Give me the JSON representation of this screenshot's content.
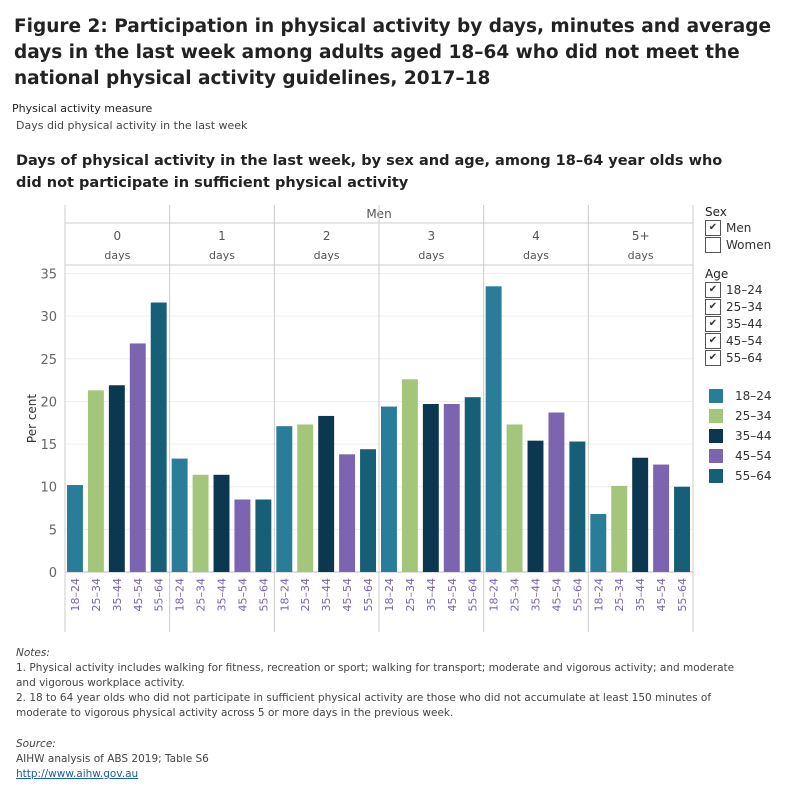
{
  "title": "Figure 2: Participation in physical activity by days, minutes and average days in the last week among adults aged 18–64 who did not meet the national physical activity guidelines, 2017–18",
  "filter": {
    "label": "Physical activity measure",
    "value": "Days did physical activity in the last week"
  },
  "chart_data": {
    "type": "bar",
    "title": "Days of physical activity in the last week, by sex and age, among 18–64 year olds who did not participate in sufficient physical activity",
    "panel_header": "Men",
    "panels": [
      {
        "value": "0",
        "unit": "days"
      },
      {
        "value": "1",
        "unit": "days"
      },
      {
        "value": "2",
        "unit": "days"
      },
      {
        "value": "3",
        "unit": "days"
      },
      {
        "value": "4",
        "unit": "days"
      },
      {
        "value": "5+",
        "unit": "days"
      }
    ],
    "categories": [
      "18–24",
      "25–34",
      "35–44",
      "45–54",
      "55–64"
    ],
    "ylabel": "Per cent",
    "ylim": [
      0,
      36
    ],
    "yticks": [
      0,
      5,
      10,
      15,
      20,
      25,
      30,
      35
    ],
    "grid": true,
    "colors": [
      "#2a7d98",
      "#a3c67b",
      "#0b3850",
      "#7b64b0",
      "#175f77"
    ],
    "values": [
      [
        10.2,
        21.3,
        21.9,
        26.8,
        31.6
      ],
      [
        13.3,
        11.4,
        11.4,
        8.5,
        8.5
      ],
      [
        17.1,
        17.3,
        18.3,
        13.8,
        14.4
      ],
      [
        19.4,
        22.6,
        19.7,
        19.7,
        20.5
      ],
      [
        33.5,
        17.3,
        15.4,
        18.7,
        15.3
      ],
      [
        6.8,
        10.1,
        13.4,
        12.6,
        10.0
      ]
    ]
  },
  "legend": {
    "sex_title": "Sex",
    "sex": [
      {
        "label": "Men",
        "checked": true
      },
      {
        "label": "Women",
        "checked": false
      }
    ],
    "age_title": "Age",
    "age": [
      {
        "label": "18–24",
        "checked": true
      },
      {
        "label": "25–34",
        "checked": true
      },
      {
        "label": "35–44",
        "checked": true
      },
      {
        "label": "45–54",
        "checked": true
      },
      {
        "label": "55–64",
        "checked": true
      }
    ],
    "colors": [
      "18–24",
      "25–34",
      "35–44",
      "45–54",
      "55–64"
    ]
  },
  "notes": {
    "heading": "Notes:",
    "n1": "1. Physical activity includes walking for fitness, recreation or sport; walking for transport; moderate and vigorous activity; and moderate and vigorous workplace activity.",
    "n2": "2. 18 to 64 year olds who did not participate in sufficient physical activity are those who did not accumulate at least 150 minutes of moderate to vigorous physical activity across 5 or more days in the previous week."
  },
  "source": {
    "heading": "Source:",
    "text": "AIHW analysis of ABS 2019; Table S6",
    "link": "http://www.aihw.gov.au"
  }
}
